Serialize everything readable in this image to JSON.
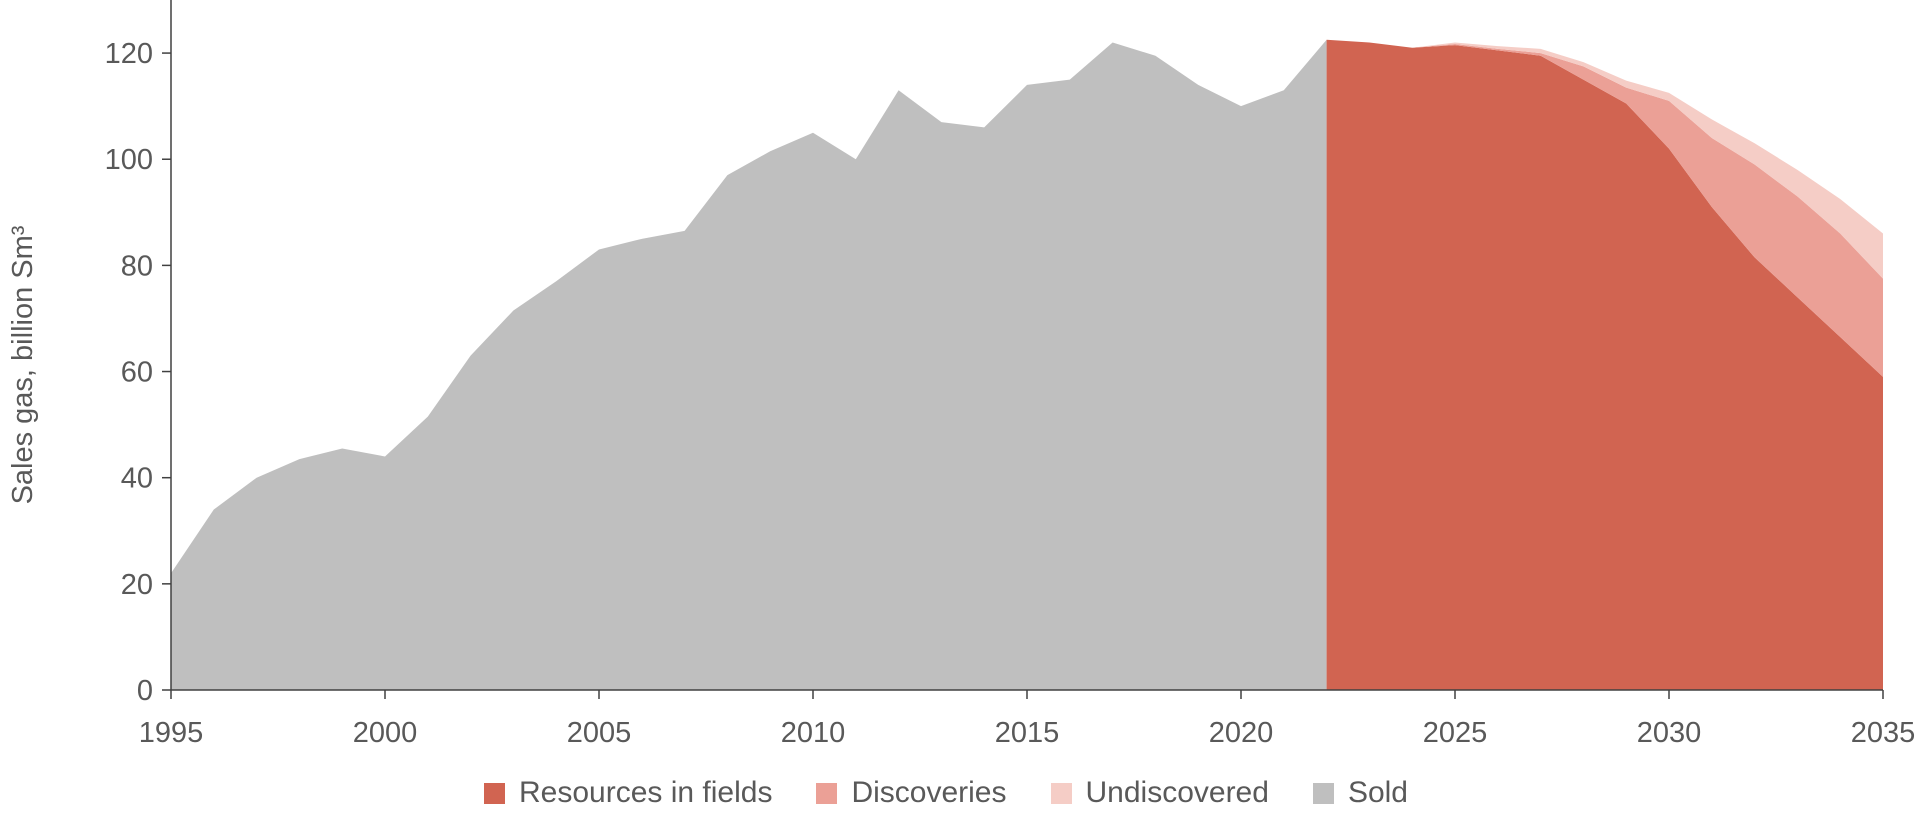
{
  "chart_data": {
    "type": "area",
    "title": "",
    "xlabel": "",
    "ylabel": "Sales gas, billion Sm³",
    "xlim": [
      1995,
      2035
    ],
    "ylim": [
      0,
      130
    ],
    "xticks": [
      "1995",
      "2000",
      "2005",
      "2010",
      "2015",
      "2020",
      "2025",
      "2030",
      "2035"
    ],
    "yticks": [
      "0",
      "20",
      "40",
      "60",
      "80",
      "100",
      "120"
    ],
    "grid": false,
    "legend_position": "bottom",
    "historical": {
      "name": "Sold",
      "color": "#bfbfbf",
      "x": [
        1995,
        1996,
        1997,
        1998,
        1999,
        2000,
        2001,
        2002,
        2003,
        2004,
        2005,
        2006,
        2007,
        2008,
        2009,
        2010,
        2011,
        2012,
        2013,
        2014,
        2015,
        2016,
        2017,
        2018,
        2019,
        2020,
        2021,
        2022
      ],
      "values": [
        22,
        34,
        40,
        43.5,
        45.5,
        44,
        51.5,
        63,
        71.5,
        77,
        83,
        85,
        86.5,
        97,
        101.5,
        105,
        100,
        113,
        107,
        106,
        114,
        115,
        122,
        119.5,
        114,
        110,
        113,
        122.5
      ]
    },
    "forecast": {
      "x": [
        2022,
        2023,
        2024,
        2025,
        2026,
        2027,
        2028,
        2029,
        2030,
        2031,
        2032,
        2033,
        2034,
        2035
      ],
      "series": [
        {
          "name": "Resources in fields",
          "color": "#d16451",
          "values": [
            122.5,
            122,
            121,
            121.5,
            120.5,
            119.5,
            115,
            110.5,
            102,
            91,
            81.5,
            74,
            66.5,
            59
          ]
        },
        {
          "name": "Discoveries",
          "color": "#eba096",
          "values": [
            0,
            0,
            0,
            0.2,
            0.3,
            0.5,
            2.5,
            3,
            9,
            13,
            17.5,
            19,
            19.5,
            18.5
          ]
        },
        {
          "name": "Undiscovered",
          "color": "#f5cdc6",
          "values": [
            0,
            0,
            0,
            0.3,
            0.5,
            0.8,
            0.8,
            1.3,
            1.5,
            3.5,
            4,
            5,
            6.5,
            8.5
          ]
        }
      ]
    },
    "legend": [
      "Resources in fields",
      "Discoveries",
      "Undiscovered",
      "Sold"
    ]
  }
}
